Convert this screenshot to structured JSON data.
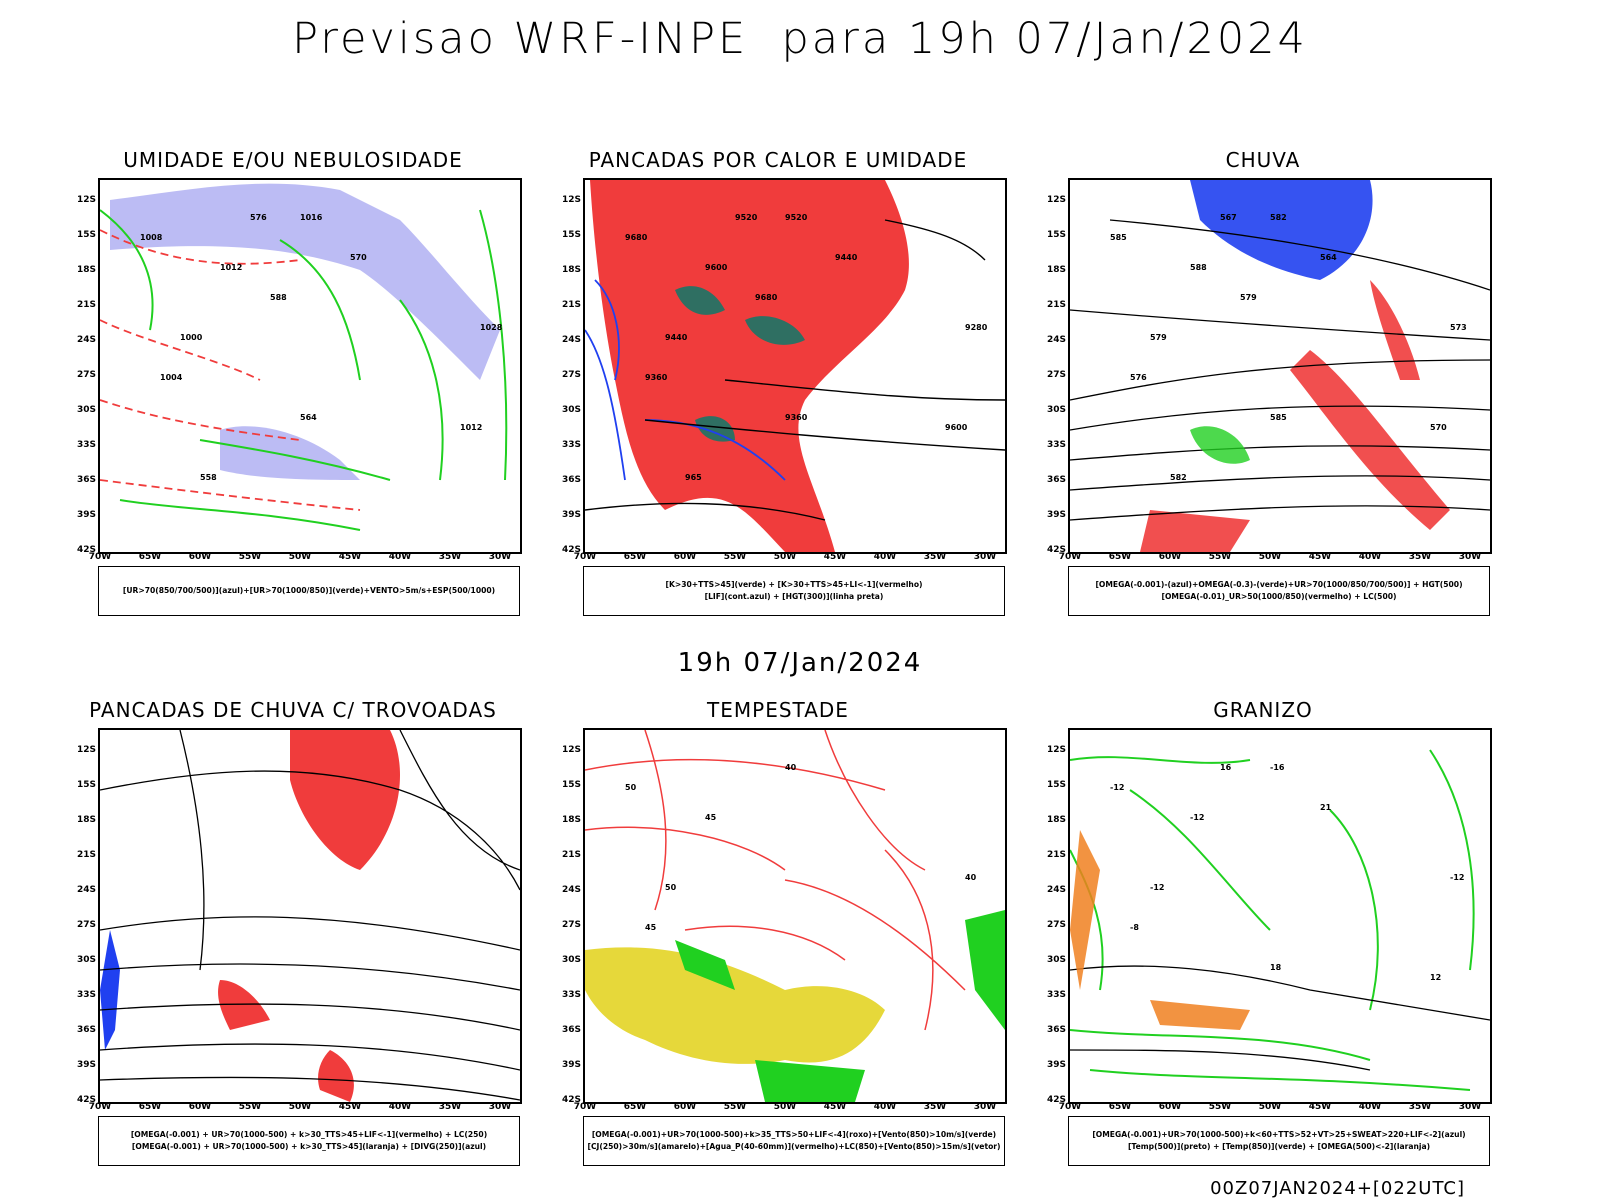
{
  "title": "Previsao WRF-INPE  para 19h 07/Jan/2024",
  "subtitle": "19h 07/Jan/2024",
  "footer": "00Z07JAN2024+[022UTC]",
  "lat_ticks": [
    "12S",
    "15S",
    "18S",
    "21S",
    "24S",
    "27S",
    "30S",
    "33S",
    "36S",
    "39S",
    "42S"
  ],
  "lon_ticks": [
    "70W",
    "65W",
    "60W",
    "55W",
    "50W",
    "45W",
    "40W",
    "35W",
    "30W"
  ],
  "colors": {
    "red": "#f03c3c",
    "green": "#20d020",
    "blue": "#2040f0",
    "lavender": "#a0a0f0",
    "teal": "#2f6f62",
    "yellow": "#e6d83a",
    "orange": "#f08020",
    "magenta": "#d020d0"
  },
  "panels": [
    {
      "title": "UMIDADE E/OU NEBULOSIDADE",
      "legend": [
        "[UR>70(850/700/500)](azul)+[UR>70(1000/850)](verde)+VENTO>5m/s+ESP(500/1000)"
      ],
      "labels": [
        "1008",
        "1012",
        "1016",
        "1000",
        "1004",
        "1028",
        "1012",
        "576",
        "570",
        "564",
        "558",
        "588"
      ]
    },
    {
      "title": "PANCADAS POR CALOR E UMIDADE",
      "legend": [
        "[K>30+TTS>45](verde) + [K>30+TTS>45+LI<-1](vermelho)",
        "[LIF](cont.azul) + [HGT(300)](linha preta)"
      ],
      "labels": [
        "9680",
        "9600",
        "9520",
        "9440",
        "9360",
        "9280",
        "9600",
        "9520",
        "9440",
        "9360",
        "965",
        "9680"
      ]
    },
    {
      "title": "CHUVA",
      "legend": [
        "[OMEGA(-0.001)-(azul)+OMEGA(-0.3)-(verde)+UR>70(1000/850/700/500)] + HGT(500)",
        "[OMEGA(-0.01)_UR>50(1000/850)(vermelho) + LC(500)"
      ],
      "labels": [
        "585",
        "588",
        "582",
        "579",
        "576",
        "573",
        "570",
        "567",
        "564",
        "585",
        "582",
        "579"
      ]
    },
    {
      "title": "PANCADAS DE CHUVA C/ TROVOADAS",
      "legend": [
        "[OMEGA(-0.001) + UR>70(1000-500) + k>30_TTS>45+LIF<-1](vermelho) + LC(250)",
        "[OMEGA(-0.001) + UR>70(1000-500) + k>30_TTS>45](laranja) + [DIVG(250)](azul)"
      ],
      "labels": []
    },
    {
      "title": "TEMPESTADE",
      "legend": [
        "[OMEGA(-0.001)+UR>70(1000-500)+k>35_TTS>50+LIF<-4](roxo)+[Vento(850)>10m/s](verde)",
        "[CJ(250)>30m/s](amarelo)+[Agua_P(40-60mm)](vermelho)+LC(850)+[Vento(850)>15m/s](vetor)"
      ],
      "labels": [
        "50",
        "45",
        "40",
        "50",
        "45",
        "40"
      ]
    },
    {
      "title": "GRANIZO",
      "legend": [
        "[OMEGA(-0.001)+UR>70(1000-500)+k<60+TTS>52+VT>25+SWEAT>220+LIF<-2](azul)",
        "[Temp(500)](preto) + [Temp(850)](verde) + [OMEGA(500)<-2](laranja)"
      ],
      "labels": [
        "-12",
        "-12",
        "-16",
        "-12",
        "-8",
        "-12",
        "12",
        "16",
        "21",
        "18"
      ]
    }
  ]
}
